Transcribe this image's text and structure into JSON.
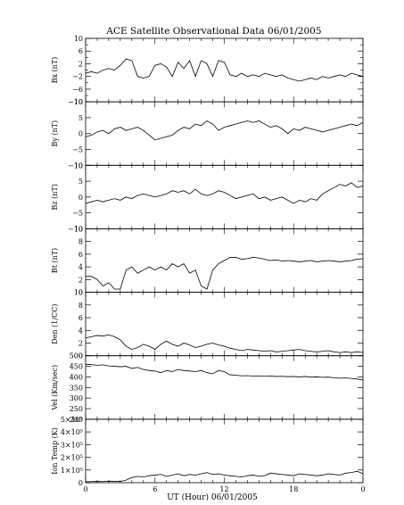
{
  "chart_data": {
    "type": "line",
    "title": "ACE Satellite Observational Data   06/01/2005",
    "xlabel": "UT (Hour)   06/01/2005",
    "x_ticks": [
      "0",
      "6",
      "12",
      "18",
      "0"
    ],
    "xlim": [
      0,
      24
    ],
    "grid": false,
    "panels": [
      {
        "ylabel": "Bx (nT)",
        "ylim": [
          -10,
          10
        ],
        "ytick_values": [
          -10,
          -6,
          -2,
          2,
          6,
          10
        ],
        "ytick_labels": [
          "−10",
          "−6",
          "−2",
          "2",
          "6",
          "10"
        ],
        "minor_ticks": [
          -8,
          -4,
          0,
          4,
          8
        ],
        "x": [
          0,
          0.5,
          1,
          1.5,
          2,
          2.5,
          3,
          3.5,
          4,
          4.5,
          5,
          5.5,
          6,
          6.5,
          7,
          7.5,
          8,
          8.5,
          9,
          9.5,
          10,
          10.5,
          11,
          11.5,
          12,
          12.5,
          13,
          13.5,
          14,
          14.5,
          15,
          15.5,
          16,
          16.5,
          17,
          17.5,
          18,
          18.5,
          19,
          19.5,
          20,
          20.5,
          21,
          21.5,
          22,
          22.5,
          23,
          23.5,
          24
        ],
        "values": [
          -1,
          -0.5,
          -1,
          0,
          0.5,
          0,
          1.5,
          3.5,
          3,
          -2,
          -2.5,
          -2,
          1.5,
          2,
          1,
          -2,
          2.5,
          0.5,
          3,
          -2,
          3,
          2,
          -2,
          3,
          2.5,
          -1.5,
          -2,
          -1,
          -2,
          -1.5,
          -2,
          -1,
          -1.5,
          -2,
          -1.5,
          -2.5,
          -3,
          -3.5,
          -3,
          -2.5,
          -3,
          -2,
          -2.5,
          -2,
          -1.5,
          -2,
          -1,
          -1.5,
          -2
        ]
      },
      {
        "ylabel": "By (nT)",
        "ylim": [
          -10,
          10
        ],
        "ytick_values": [
          -10,
          -5,
          0,
          5,
          10
        ],
        "ytick_labels": [
          "−10",
          "−5",
          "0",
          "5",
          "10"
        ],
        "minor_ticks": [],
        "x": [
          0,
          0.5,
          1,
          1.5,
          2,
          2.5,
          3,
          3.5,
          4,
          4.5,
          5,
          5.5,
          6,
          6.5,
          7,
          7.5,
          8,
          8.5,
          9,
          9.5,
          10,
          10.5,
          11,
          11.5,
          12,
          12.5,
          13,
          13.5,
          14,
          14.5,
          15,
          15.5,
          16,
          16.5,
          17,
          17.5,
          18,
          18.5,
          19,
          19.5,
          20,
          20.5,
          21,
          21.5,
          22,
          22.5,
          23,
          23.5,
          24
        ],
        "values": [
          -1,
          -0.5,
          0.5,
          1,
          0,
          1.5,
          2,
          1,
          1.5,
          2,
          1,
          -0.5,
          -2,
          -1.5,
          -1,
          -0.5,
          1,
          2,
          1.5,
          3,
          2.5,
          4,
          3,
          1,
          2,
          2.5,
          3,
          3.5,
          4,
          3.5,
          4,
          3,
          2,
          2.5,
          1.5,
          0,
          1.5,
          1,
          2,
          1.5,
          1,
          0.5,
          1,
          1.5,
          2,
          2.5,
          3,
          2.5,
          3.5
        ]
      },
      {
        "ylabel": "Bz (nT)",
        "ylim": [
          -10,
          10
        ],
        "ytick_values": [
          -10,
          -5,
          0,
          5,
          10
        ],
        "ytick_labels": [
          "−10",
          "−5",
          "0",
          "5",
          "10"
        ],
        "minor_ticks": [],
        "x": [
          0,
          0.5,
          1,
          1.5,
          2,
          2.5,
          3,
          3.5,
          4,
          4.5,
          5,
          5.5,
          6,
          6.5,
          7,
          7.5,
          8,
          8.5,
          9,
          9.5,
          10,
          10.5,
          11,
          11.5,
          12,
          12.5,
          13,
          13.5,
          14,
          14.5,
          15,
          15.5,
          16,
          16.5,
          17,
          17.5,
          18,
          18.5,
          19,
          19.5,
          20,
          20.5,
          21,
          21.5,
          22,
          22.5,
          23,
          23.5,
          24
        ],
        "values": [
          -2,
          -1.5,
          -1,
          -1.5,
          -1,
          -0.5,
          -1,
          0,
          -0.5,
          0.5,
          1,
          0.5,
          0,
          0.5,
          1,
          2,
          1.5,
          2,
          1,
          2.5,
          1,
          0.5,
          1,
          2,
          1.5,
          0.5,
          -0.5,
          0,
          0.5,
          1,
          -0.5,
          0,
          -1,
          -0.5,
          0,
          -1,
          -2,
          -1,
          -1.5,
          -0.5,
          -1,
          1,
          2,
          3,
          4,
          3.5,
          4.5,
          3,
          3.5
        ]
      },
      {
        "ylabel": "Bt (nT)",
        "ylim": [
          0,
          10
        ],
        "ytick_values": [
          0,
          2,
          4,
          6,
          8,
          10
        ],
        "ytick_labels": [
          "0",
          "2",
          "4",
          "6",
          "8",
          "10"
        ],
        "minor_ticks": [],
        "x": [
          0,
          0.5,
          1,
          1.5,
          2,
          2.5,
          3,
          3.5,
          4,
          4.5,
          5,
          5.5,
          6,
          6.5,
          7,
          7.5,
          8,
          8.5,
          9,
          9.5,
          10,
          10.5,
          11,
          11.5,
          12,
          12.5,
          13,
          13.5,
          14,
          14.5,
          15,
          15.5,
          16,
          16.5,
          17,
          17.5,
          18,
          18.5,
          19,
          19.5,
          20,
          20.5,
          21,
          21.5,
          22,
          22.5,
          23,
          23.5,
          24
        ],
        "values": [
          2.5,
          2.5,
          2,
          1,
          1.5,
          0.5,
          0.5,
          3.5,
          4,
          3,
          3.5,
          4,
          3.5,
          4,
          3.5,
          4.5,
          4,
          4.5,
          3,
          3.5,
          1,
          0.5,
          3.5,
          4.5,
          5,
          5.5,
          5.5,
          5.2,
          5.3,
          5.5,
          5.4,
          5.2,
          5,
          5.1,
          4.9,
          5,
          4.9,
          4.8,
          4.9,
          5,
          4.8,
          4.9,
          5,
          4.9,
          4.8,
          4.9,
          5,
          5.2,
          5.3
        ]
      },
      {
        "ylabel": "Den (1/CC)",
        "ylim": [
          0,
          10
        ],
        "ytick_values": [
          0,
          2,
          4,
          6,
          8,
          10
        ],
        "ytick_labels": [
          "0",
          "2",
          "4",
          "6",
          "8",
          "10"
        ],
        "minor_ticks": [],
        "x": [
          0,
          0.5,
          1,
          1.5,
          2,
          2.5,
          3,
          3.5,
          4,
          4.5,
          5,
          5.5,
          6,
          6.5,
          7,
          7.5,
          8,
          8.5,
          9,
          9.5,
          10,
          10.5,
          11,
          11.5,
          12,
          12.5,
          13,
          13.5,
          14,
          14.5,
          15,
          15.5,
          16,
          16.5,
          17,
          17.5,
          18,
          18.5,
          19,
          19.5,
          20,
          20.5,
          21,
          21.5,
          22,
          22.5,
          23,
          23.5,
          24
        ],
        "values": [
          2.8,
          3,
          3.2,
          3.1,
          3.3,
          3,
          2.5,
          1.5,
          1,
          1.3,
          1.8,
          1.5,
          1,
          1.8,
          2.3,
          1.8,
          1.5,
          2,
          1.7,
          1.3,
          1.5,
          1.8,
          2,
          1.7,
          1.5,
          1.2,
          1,
          0.8,
          1,
          0.9,
          0.8,
          0.7,
          0.8,
          0.6,
          0.7,
          0.8,
          0.9,
          1,
          0.8,
          0.7,
          0.6,
          0.7,
          0.8,
          0.6,
          0.5,
          0.6,
          0.5,
          0.6,
          0.5
        ]
      },
      {
        "ylabel": "Vel (Km/sec)",
        "ylim": [
          200,
          500
        ],
        "ytick_values": [
          200,
          250,
          300,
          350,
          400,
          450,
          500
        ],
        "ytick_labels": [
          "200",
          "250",
          "300",
          "350",
          "400",
          "450",
          "500"
        ],
        "minor_ticks": [],
        "x": [
          0,
          0.5,
          1,
          1.5,
          2,
          2.5,
          3,
          3.5,
          4,
          4.5,
          5,
          5.5,
          6,
          6.5,
          7,
          7.5,
          8,
          8.5,
          9,
          9.5,
          10,
          10.5,
          11,
          11.5,
          12,
          12.5,
          13,
          13.5,
          14,
          14.5,
          15,
          15.5,
          16,
          16.5,
          17,
          17.5,
          18,
          18.5,
          19,
          19.5,
          20,
          20.5,
          21,
          21.5,
          22,
          22.5,
          23,
          23.5,
          24
        ],
        "values": [
          460,
          458,
          455,
          457,
          452,
          450,
          448,
          450,
          440,
          445,
          435,
          430,
          428,
          420,
          430,
          425,
          435,
          430,
          428,
          425,
          430,
          420,
          415,
          430,
          425,
          410,
          408,
          405,
          406,
          404,
          405,
          403,
          404,
          402,
          403,
          401,
          402,
          400,
          402,
          399,
          400,
          398,
          399,
          396,
          394,
          395,
          393,
          390,
          385
        ]
      },
      {
        "ylabel": "Ion Temp (K)",
        "ylim": [
          0,
          500000
        ],
        "ytick_values": [
          0,
          100000,
          200000,
          300000,
          400000,
          500000
        ],
        "ytick_labels": [
          "0",
          "1×10⁵",
          "2×10⁵",
          "3×10⁵",
          "4×10⁵",
          "5×10⁵"
        ],
        "minor_ticks": [],
        "x": [
          0,
          0.5,
          1,
          1.5,
          2,
          2.5,
          3,
          3.5,
          4,
          4.5,
          5,
          5.5,
          6,
          6.5,
          7,
          7.5,
          8,
          8.5,
          9,
          9.5,
          10,
          10.5,
          11,
          11.5,
          12,
          12.5,
          13,
          13.5,
          14,
          14.5,
          15,
          15.5,
          16,
          16.5,
          17,
          17.5,
          18,
          18.5,
          19,
          19.5,
          20,
          20.5,
          21,
          21.5,
          22,
          22.5,
          23,
          23.5,
          24
        ],
        "values": [
          8000,
          9000,
          10000,
          9000,
          12000,
          11000,
          10000,
          20000,
          40000,
          50000,
          45000,
          55000,
          60000,
          65000,
          50000,
          60000,
          70000,
          55000,
          65000,
          60000,
          70000,
          80000,
          65000,
          70000,
          60000,
          55000,
          50000,
          45000,
          55000,
          60000,
          50000,
          55000,
          75000,
          70000,
          65000,
          60000,
          55000,
          70000,
          65000,
          60000,
          55000,
          60000,
          70000,
          65000,
          60000,
          75000,
          80000,
          90000,
          70000
        ]
      }
    ]
  }
}
